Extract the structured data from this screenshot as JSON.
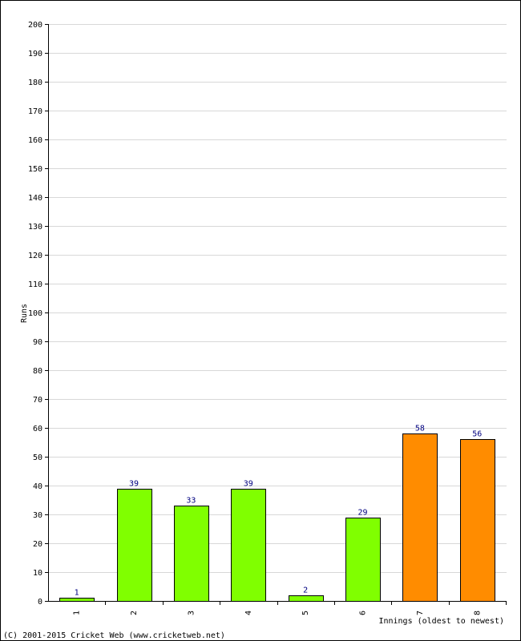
{
  "chart_data": {
    "type": "bar",
    "title": "",
    "xlabel": "Innings (oldest to newest)",
    "ylabel": "Runs",
    "categories": [
      "1",
      "2",
      "3",
      "4",
      "5",
      "6",
      "7",
      "8"
    ],
    "values": [
      1,
      39,
      33,
      39,
      2,
      29,
      58,
      56
    ],
    "bar_colors": [
      "#80ff00",
      "#80ff00",
      "#80ff00",
      "#80ff00",
      "#80ff00",
      "#80ff00",
      "#ff8c00",
      "#ff8c00"
    ],
    "ylim": [
      0,
      200
    ],
    "ytick_step": 10,
    "grid": true,
    "legend": "none"
  },
  "colors": {
    "bar_outline": "#000000",
    "grid": "#d8d8d8",
    "data_label": "#000080"
  },
  "footer": {
    "copyright": "(C) 2001-2015 Cricket Web (www.cricketweb.net)"
  }
}
